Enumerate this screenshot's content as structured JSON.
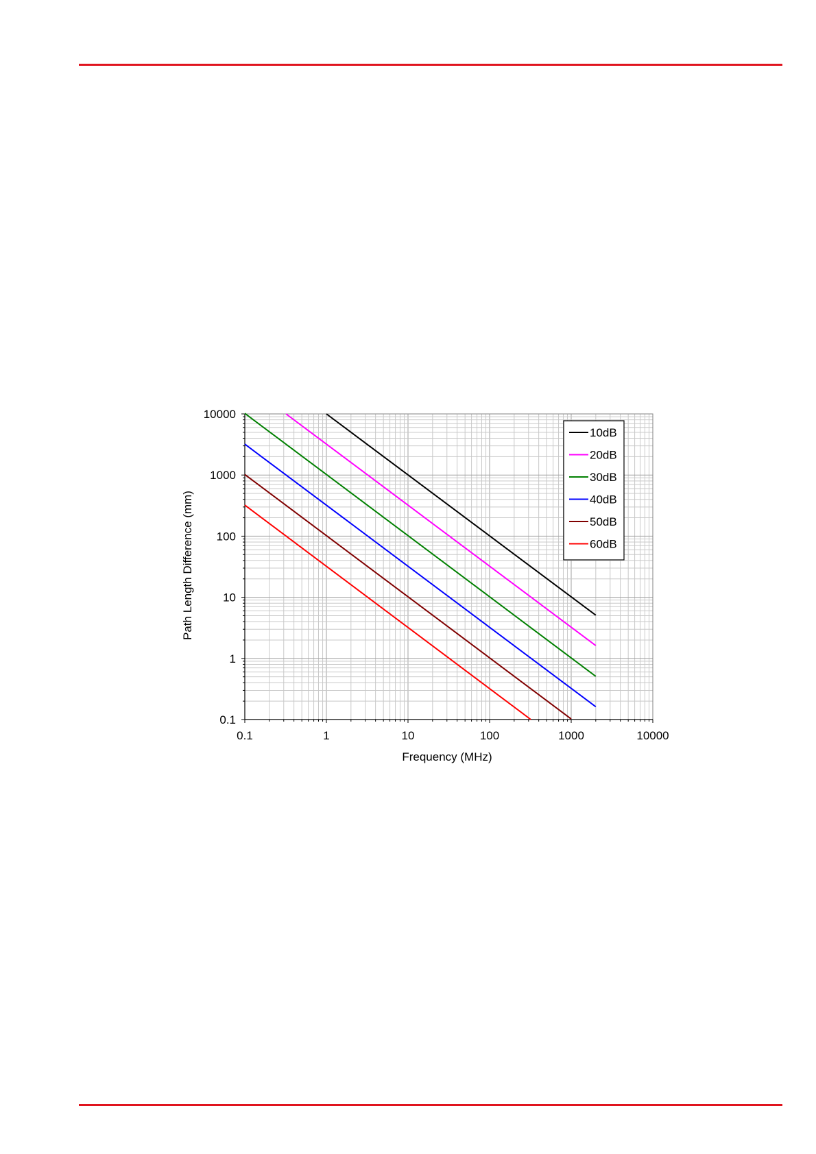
{
  "page": {
    "rule_color": "#e0141e"
  },
  "chart_data": {
    "type": "line",
    "title": "",
    "xlabel": "Frequency (MHz)",
    "ylabel": "Path Length Difference (mm)",
    "x_scale": "log",
    "y_scale": "log",
    "xlim": [
      0.1,
      10000
    ],
    "ylim": [
      0.1,
      10000
    ],
    "x_ticks": [
      "0.1",
      "1",
      "10",
      "100",
      "1000",
      "10000"
    ],
    "y_ticks": [
      "0.1",
      "1",
      "10",
      "100",
      "1000",
      "10000"
    ],
    "grid": true,
    "legend_position": "top-right",
    "series": [
      {
        "name": "10dB",
        "color": "#000000",
        "x": [
          1.0,
          2000
        ],
        "y": [
          10000,
          5.1
        ]
      },
      {
        "name": "20dB",
        "color": "#ff00ff",
        "x": [
          0.32,
          2000
        ],
        "y": [
          10000,
          1.62
        ]
      },
      {
        "name": "30dB",
        "color": "#008000",
        "x": [
          0.1,
          2000
        ],
        "y": [
          10200,
          0.51
        ]
      },
      {
        "name": "40dB",
        "color": "#0000ff",
        "x": [
          0.1,
          2000
        ],
        "y": [
          3200,
          0.162
        ]
      },
      {
        "name": "50dB",
        "color": "#800000",
        "x": [
          0.1,
          1000
        ],
        "y": [
          1020,
          0.102
        ]
      },
      {
        "name": "60dB",
        "color": "#ff0000",
        "x": [
          0.1,
          320
        ],
        "y": [
          322,
          0.1
        ]
      }
    ]
  }
}
